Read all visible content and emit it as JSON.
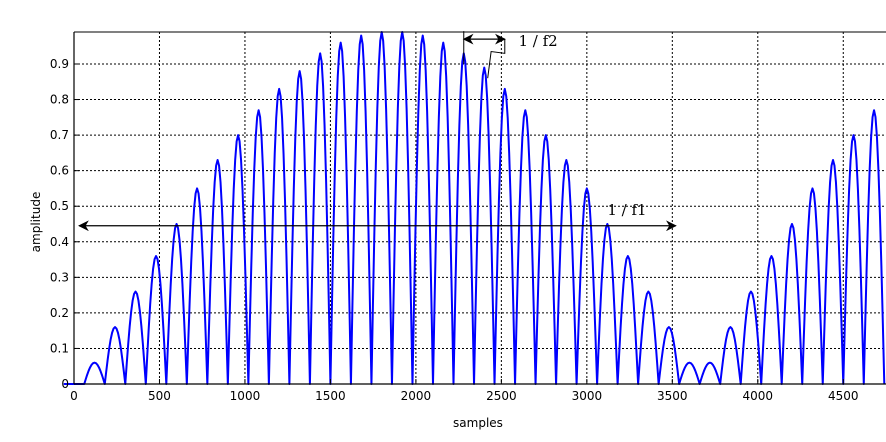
{
  "chart_data": {
    "type": "line",
    "title": "",
    "xlabel": "samples",
    "ylabel": "amplitude",
    "xlim": [
      0,
      4750
    ],
    "ylim": [
      0,
      0.99
    ],
    "grid": true,
    "x_ticks": [
      "0",
      "500",
      "1000",
      "1500",
      "2000",
      "2500",
      "3000",
      "3500",
      "4000",
      "4500"
    ],
    "x_tick_values": [
      0,
      500,
      1000,
      1500,
      2000,
      2500,
      3000,
      3500,
      4000,
      4500
    ],
    "y_ticks": [
      "0",
      "0.1",
      "0.2",
      "0.3",
      "0.4",
      "0.5",
      "0.6",
      "0.7",
      "0.8",
      "0.9"
    ],
    "y_tick_values": [
      0,
      0.1,
      0.2,
      0.3,
      0.4,
      0.5,
      0.6,
      0.7,
      0.8,
      0.9
    ],
    "series": [
      {
        "color": "#0000ff",
        "x": [
          0,
          120,
          240,
          360,
          480,
          600,
          720,
          840,
          960,
          1080,
          1200,
          1320,
          1440,
          1560,
          1680,
          1800,
          1920,
          2040,
          2160,
          2280,
          2400,
          2520,
          2640,
          2760,
          2880,
          3000,
          3120,
          3240,
          3360,
          3480,
          3600,
          3720,
          3840,
          3960,
          4080,
          4200,
          4320,
          4440,
          4560,
          4680
        ],
        "y": [
          0.0,
          0.06,
          0.16,
          0.26,
          0.36,
          0.45,
          0.55,
          0.63,
          0.7,
          0.77,
          0.83,
          0.88,
          0.93,
          0.96,
          0.98,
          0.99,
          0.99,
          0.98,
          0.96,
          0.93,
          0.89,
          0.83,
          0.77,
          0.7,
          0.63,
          0.55,
          0.45,
          0.36,
          0.26,
          0.16,
          0.06,
          0.06,
          0.16,
          0.26,
          0.36,
          0.45,
          0.55,
          0.63,
          0.7,
          0.77
        ]
      }
    ],
    "annotations": [
      {
        "text": "1 / f2",
        "arrow_from": 2280,
        "arrow_to": 2520,
        "y": 0.97,
        "label_x": 2600,
        "label_y": 0.965
      },
      {
        "text": "1 / f1",
        "arrow_from": 30,
        "arrow_to": 3520,
        "y": 0.445,
        "label_x": 3120,
        "label_y": 0.49
      }
    ]
  }
}
